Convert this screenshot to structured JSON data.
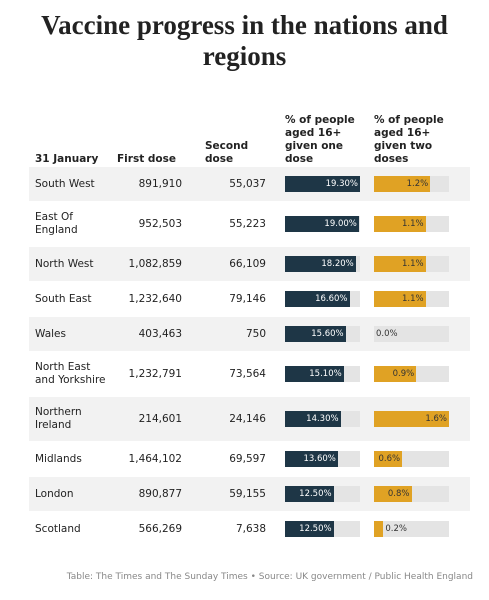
{
  "title": "Vaccine progress in the nations and regions",
  "table": {
    "columns": [
      {
        "label": "31 January"
      },
      {
        "label": "First dose"
      },
      {
        "label": "Second dose"
      },
      {
        "label": "% of people aged 16+ given one dose",
        "xlim": [
          0,
          19.3
        ]
      },
      {
        "label": "% of people aged 16+ given two doses",
        "xlim": [
          0,
          1.6
        ]
      }
    ],
    "rows": [
      {
        "region": "South West",
        "first_dose": "891,910",
        "second_dose": "55,037",
        "one_dose": {
          "value": 19.3,
          "label": "19.30%"
        },
        "two_doses": {
          "value": 1.2,
          "label": "1.2%"
        }
      },
      {
        "region": "East Of England",
        "first_dose": "952,503",
        "second_dose": "55,223",
        "one_dose": {
          "value": 19.0,
          "label": "19.00%"
        },
        "two_doses": {
          "value": 1.1,
          "label": "1.1%"
        }
      },
      {
        "region": "North West",
        "first_dose": "1,082,859",
        "second_dose": "66,109",
        "one_dose": {
          "value": 18.2,
          "label": "18.20%"
        },
        "two_doses": {
          "value": 1.1,
          "label": "1.1%"
        }
      },
      {
        "region": "South East",
        "first_dose": "1,232,640",
        "second_dose": "79,146",
        "one_dose": {
          "value": 16.6,
          "label": "16.60%"
        },
        "two_doses": {
          "value": 1.1,
          "label": "1.1%"
        }
      },
      {
        "region": "Wales",
        "first_dose": "403,463",
        "second_dose": "750",
        "one_dose": {
          "value": 15.6,
          "label": "15.60%"
        },
        "two_doses": {
          "value": 0,
          "label": "0.0%"
        }
      },
      {
        "region": "North East and Yorkshire",
        "first_dose": "1,232,791",
        "second_dose": "73,564",
        "one_dose": {
          "value": 15.1,
          "label": "15.10%"
        },
        "two_doses": {
          "value": 0.9,
          "label": "0.9%"
        }
      },
      {
        "region": "Northern Ireland",
        "first_dose": "214,601",
        "second_dose": "24,146",
        "one_dose": {
          "value": 14.3,
          "label": "14.30%"
        },
        "two_doses": {
          "value": 1.6,
          "label": "1.6%"
        }
      },
      {
        "region": "Midlands",
        "first_dose": "1,464,102",
        "second_dose": "69,597",
        "one_dose": {
          "value": 13.6,
          "label": "13.60%"
        },
        "two_doses": {
          "value": 0.6,
          "label": "0.6%"
        }
      },
      {
        "region": "London",
        "first_dose": "890,877",
        "second_dose": "59,155",
        "one_dose": {
          "value": 12.5,
          "label": "12.50%"
        },
        "two_doses": {
          "value": 0.8,
          "label": "0.8%"
        }
      },
      {
        "region": "Scotland",
        "first_dose": "566,269",
        "second_dose": "7,638",
        "one_dose": {
          "value": 12.5,
          "label": "12.50%"
        },
        "two_doses": {
          "value": 0.2,
          "label": "0.2%"
        }
      }
    ]
  },
  "footer": "Table: The Times and The Sunday Times • Source: UK government / Public Health England"
}
